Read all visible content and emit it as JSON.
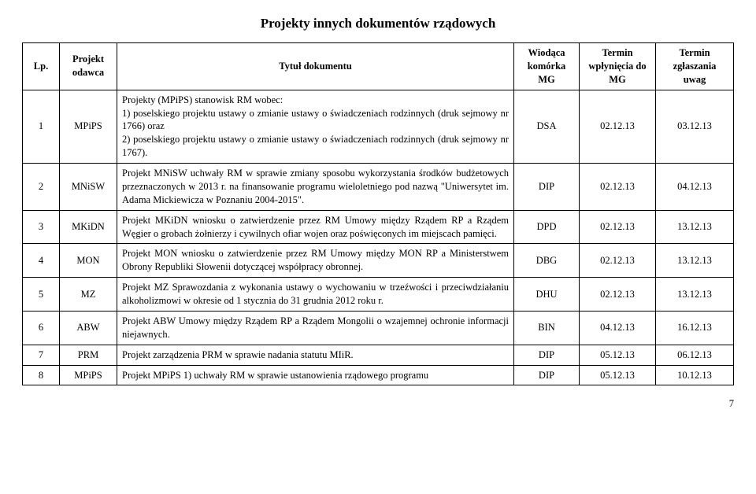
{
  "title": "Projekty innych dokumentów rządowych",
  "headers": {
    "lp": "Lp.",
    "odawca": "Projekt odawca",
    "tytul": "Tytuł dokumentu",
    "mg": "Wiodąca komórka MG",
    "wpl": "Termin wpłynięcia do MG",
    "zgl": "Termin zgłaszania uwag"
  },
  "rows": [
    {
      "lp": "1",
      "odawca": "MPiPS",
      "tytul": "Projekty (MPiPS) stanowisk RM wobec:\n1) poselskiego projektu ustawy o zmianie ustawy o świadczeniach rodzinnych (druk sejmowy nr 1766) oraz\n2) poselskiego projektu ustawy o zmianie ustawy o świadczeniach rodzinnych (druk sejmowy nr 1767).",
      "mg": "DSA",
      "d1": "02.12.13",
      "d2": "03.12.13"
    },
    {
      "lp": "2",
      "odawca": "MNiSW",
      "tytul": "Projekt MNiSW uchwały RM w sprawie zmiany sposobu wykorzystania środków budżetowych przeznaczonych w 2013 r. na finansowanie programu wieloletniego pod nazwą \"Uniwersytet im. Adama Mickiewicza w Poznaniu 2004-2015\".",
      "mg": "DIP",
      "d1": "02.12.13",
      "d2": "04.12.13"
    },
    {
      "lp": "3",
      "odawca": "MKiDN",
      "tytul": "Projekt MKiDN wniosku o zatwierdzenie przez RM Umowy między Rządem RP a Rządem Węgier o grobach żołnierzy i cywilnych ofiar wojen oraz poświęconych im miejscach pamięci.",
      "mg": "DPD",
      "d1": "02.12.13",
      "d2": "13.12.13"
    },
    {
      "lp": "4",
      "odawca": "MON",
      "tytul": "Projekt MON wniosku o zatwierdzenie przez RM Umowy między MON RP a Ministerstwem Obrony Republiki Słowenii dotyczącej współpracy obronnej.",
      "mg": "DBG",
      "d1": "02.12.13",
      "d2": "13.12.13"
    },
    {
      "lp": "5",
      "odawca": "MZ",
      "tytul": "Projekt MZ Sprawozdania z wykonania ustawy o wychowaniu w trzeźwości i przeciwdziałaniu alkoholizmowi w okresie od 1 stycznia do 31 grudnia 2012 roku r.",
      "mg": "DHU",
      "d1": "02.12.13",
      "d2": "13.12.13"
    },
    {
      "lp": "6",
      "odawca": "ABW",
      "tytul": "Projekt ABW Umowy między Rządem RP a Rządem Mongolii o wzajemnej ochronie informacji niejawnych.",
      "mg": "BIN",
      "d1": "04.12.13",
      "d2": "16.12.13"
    },
    {
      "lp": "7",
      "odawca": "PRM",
      "tytul": "Projekt zarządzenia PRM w sprawie nadania statutu MIiR.",
      "mg": "DIP",
      "d1": "05.12.13",
      "d2": "06.12.13"
    },
    {
      "lp": "8",
      "odawca": "MPiPS",
      "tytul": "Projekt MPiPS 1) uchwały RM w sprawie ustanowienia rządowego programu",
      "mg": "DIP",
      "d1": "05.12.13",
      "d2": "10.12.13"
    }
  ],
  "page_number": "7"
}
